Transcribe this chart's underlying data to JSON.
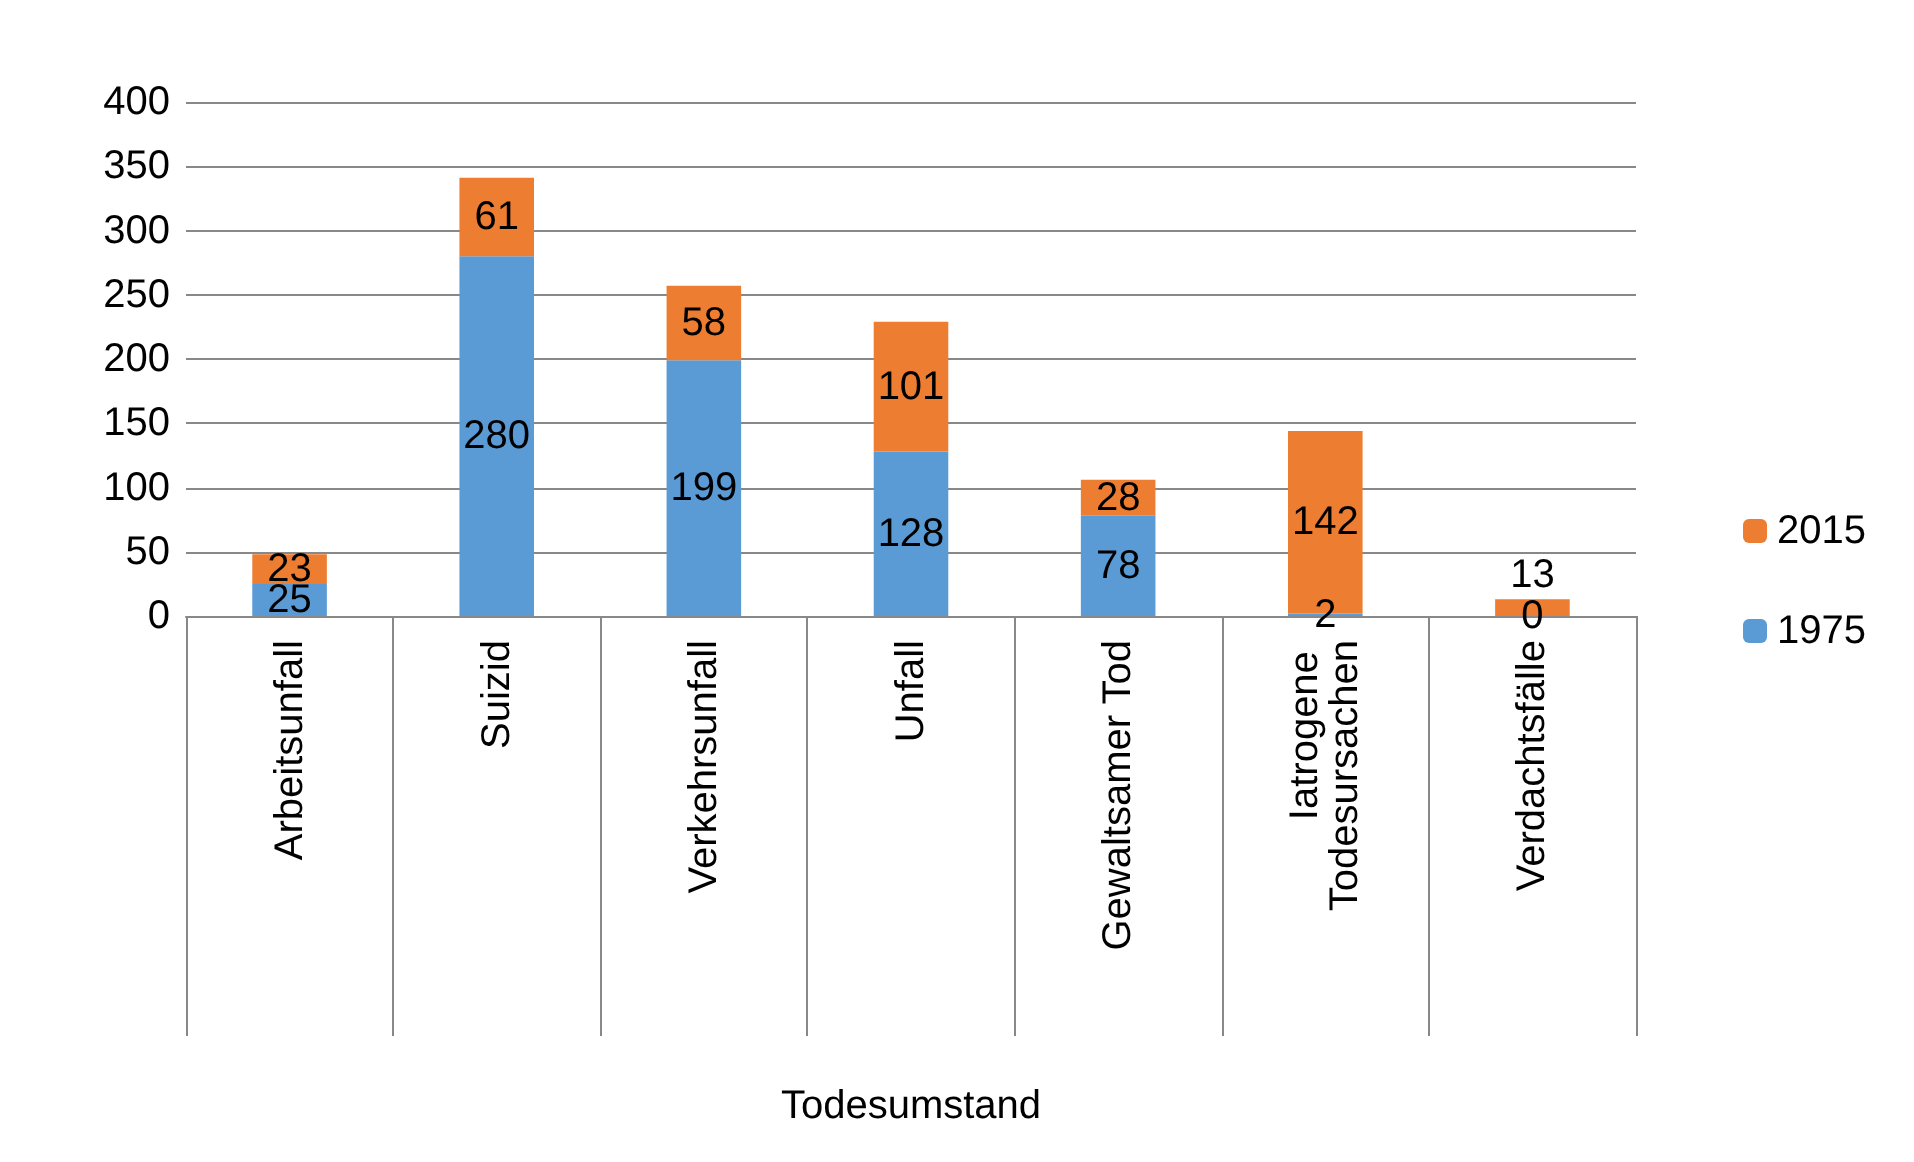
{
  "chart_data": {
    "type": "bar",
    "stacked": true,
    "xlabel": "Todesumstand",
    "categories": [
      "Arbeitsunfall",
      "Suizid",
      "Verkehrsunfall",
      "Unfall",
      "Gewaltsamer Tod",
      "Iatrogene Todesursachen",
      "Verdachtsfälle"
    ],
    "series": [
      {
        "name": "1975",
        "color": "#5b9bd5",
        "values": [
          25,
          280,
          199,
          128,
          78,
          2,
          0
        ]
      },
      {
        "name": "2015",
        "color": "#ed7d31",
        "values": [
          23,
          61,
          58,
          101,
          28,
          142,
          13
        ]
      }
    ],
    "ylim": [
      0,
      400
    ],
    "yticks": [
      0,
      50,
      100,
      150,
      200,
      250,
      300,
      350,
      400
    ],
    "grid": "y",
    "legend": "right",
    "data_labels": true
  }
}
